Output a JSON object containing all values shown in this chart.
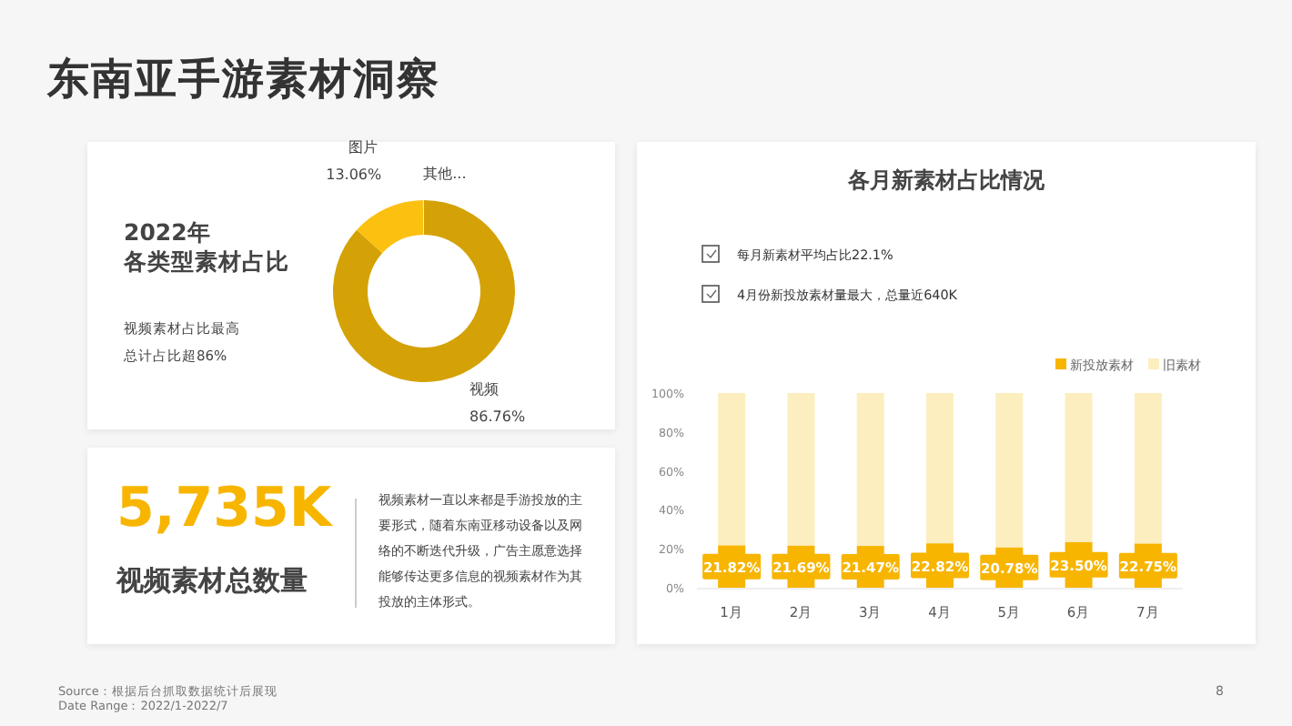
{
  "chart_data": [
    {
      "type": "other",
      "title": "东南亚手游素材洞察",
      "annotations": [
        "Source：根据后台抓取数据统计后展现",
        "Date Range：2022/1-2022/7",
        "8"
      ]
    },
    {
      "type": "donut",
      "title": "2022年",
      "subtitle": "各类型素材占比",
      "annotations": [
        "视频素材占比最高",
        "总计占比超86%"
      ],
      "categories": [
        "视频",
        "图片",
        "其他..."
      ],
      "values": [
        86.76,
        13.06,
        0.18
      ],
      "colors": [
        "#d4a206",
        "#fcc010",
        "#fde9b8"
      ],
      "value_labels": [
        "86.76%",
        "13.06%",
        null
      ]
    },
    {
      "type": "other",
      "title": "5,735K",
      "subtitle": "视频素材总数量",
      "annotations": [
        "视频素材一直以来都是手游投放的主要形式，随着东南亚移动设备以及网络的不断迭代升级，广告主愿意选择能够传达更多信息的视频素材作为其投放的主体形式。"
      ]
    },
    {
      "type": "bar",
      "title": "各月新素材占比情况",
      "annotations": [
        "每月新素材平均占比22.1%",
        "4月份新投放素材量最大，总量近640K"
      ],
      "categories": [
        "1月",
        "2月",
        "3月",
        "4月",
        "5月",
        "6月",
        "7月"
      ],
      "stacked": true,
      "legend": "top right",
      "ylim": [
        0,
        100
      ],
      "yticks": [
        {
          "value": 0,
          "label": "0%"
        },
        {
          "value": 20,
          "label": "20%"
        },
        {
          "value": 40,
          "label": "40%"
        },
        {
          "value": 60,
          "label": "60%"
        },
        {
          "value": 80,
          "label": "80%"
        },
        {
          "value": 100,
          "label": "100%"
        }
      ],
      "series": [
        {
          "name": "新投放素材",
          "color": "#f7b500",
          "values": [
            21.82,
            21.69,
            21.47,
            22.82,
            20.78,
            23.5,
            22.75
          ],
          "value_labels": [
            "21.82%",
            "21.69%",
            "21.47%",
            "22.82%",
            "20.78%",
            "23.50%",
            "22.75%"
          ]
        },
        {
          "name": "旧素材",
          "color": "#fdeebf",
          "values": [
            78.18,
            78.31,
            78.53,
            77.18,
            79.22,
            76.5,
            77.25
          ]
        }
      ]
    }
  ]
}
